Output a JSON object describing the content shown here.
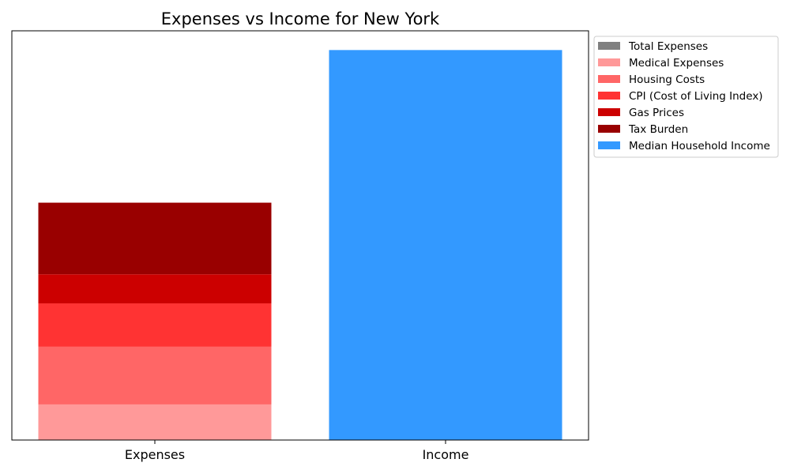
{
  "chart_data": {
    "type": "bar",
    "stacked": true,
    "title": "Expenses vs Income for New York",
    "xlabel": "",
    "ylabel": "",
    "categories": [
      "Expenses",
      "Income"
    ],
    "ylim": [
      0,
      100
    ],
    "y_ticks_shown": false,
    "grid": false,
    "legend_placement": "outside-top-right",
    "series": [
      {
        "name": "Total Expenses",
        "color": "#808080",
        "values": [
          0,
          0
        ]
      },
      {
        "name": "Medical Expenses",
        "color": "#ff9999",
        "values": [
          8.7,
          0
        ]
      },
      {
        "name": "Housing Costs",
        "color": "#ff6666",
        "values": [
          14.1,
          0
        ]
      },
      {
        "name": "CPI (Cost of Living Index)",
        "color": "#ff3333",
        "values": [
          10.6,
          0
        ]
      },
      {
        "name": "Gas Prices",
        "color": "#cc0000",
        "values": [
          7.1,
          0
        ]
      },
      {
        "name": "Tax Burden",
        "color": "#990000",
        "values": [
          17.5,
          0
        ]
      },
      {
        "name": "Median Household Income",
        "color": "#3399ff",
        "values": [
          0,
          95.3
        ]
      }
    ]
  }
}
